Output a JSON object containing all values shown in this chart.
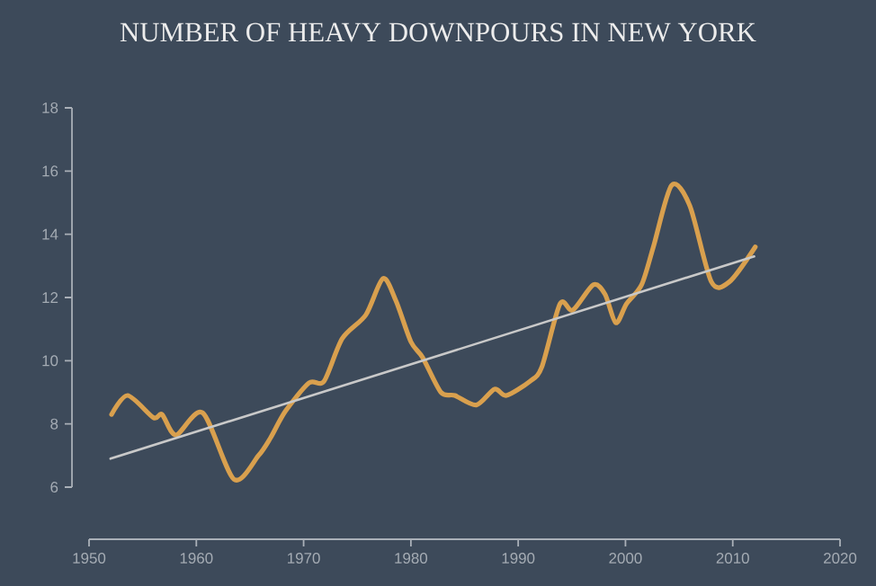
{
  "chart_data": {
    "type": "line",
    "title": "NUMBER OF HEAVY DOWNPOURS IN NEW YORK",
    "x": [
      1952.1,
      1953.6,
      1956,
      1956.8,
      1958.1,
      1960.6,
      1963.5,
      1965.8,
      1966.9,
      1968.3,
      1970.5,
      1971.9,
      1973.6,
      1975.8,
      1977.4,
      1978.6,
      1980,
      1981.1,
      1982.8,
      1984.1,
      1986.1,
      1987.8,
      1988.9,
      1991.1,
      1992.2,
      1993.9,
      1995.1,
      1997,
      1998.1,
      1999.1,
      2000.1,
      2001.5,
      2002.6,
      2004.3,
      2006,
      2008,
      2009.7,
      2012.1
    ],
    "series": [
      {
        "color": "#d9a04e",
        "values": [
          8.3,
          8.9,
          8.2,
          8.3,
          7.65,
          8.35,
          6.25,
          7.0,
          7.55,
          8.4,
          9.3,
          9.35,
          10.7,
          11.45,
          12.6,
          11.9,
          10.6,
          10.1,
          9.0,
          8.9,
          8.6,
          9.1,
          8.9,
          9.35,
          9.8,
          11.8,
          11.6,
          12.4,
          12.1,
          11.2,
          11.8,
          12.4,
          13.6,
          15.55,
          14.9,
          12.5,
          12.5,
          13.6
        ]
      },
      {
        "type": "line",
        "color": "#c9c9c9",
        "x": [
          1952,
          2012
        ],
        "values": [
          6.9,
          13.3
        ]
      }
    ],
    "xlim": [
      1950,
      2020
    ],
    "xticks": [
      1950,
      1960,
      1970,
      1980,
      1990,
      2000,
      2010,
      2020
    ],
    "ylim": [
      6,
      18
    ],
    "yticks": [
      6,
      8,
      10,
      12,
      14,
      16,
      18
    ],
    "grid": false,
    "marker": "none",
    "line_style": "solid"
  }
}
